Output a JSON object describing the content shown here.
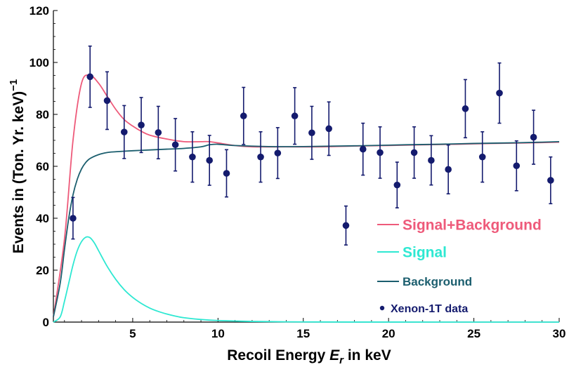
{
  "colors": {
    "signal_plus_background": "#ee5a7a",
    "signal": "#2ee8d2",
    "background": "#1b5e6e",
    "data": "#141b6e",
    "axis": "#000000"
  },
  "chart_data": {
    "type": "scatter",
    "title": "",
    "xlabel_prefix": "Recoil Energy ",
    "xlabel_var": "E",
    "xlabel_sub": "r",
    "xlabel_suffix": " in keV",
    "ylabel_main": "Events in (Ton. Yr. keV)",
    "ylabel_sup": "−1",
    "xlim": [
      0.35,
      30
    ],
    "ylim": [
      0,
      120
    ],
    "x_ticks": [
      5,
      10,
      15,
      20,
      25,
      30
    ],
    "x_tick_labels": [
      "5",
      "10",
      "15",
      "20",
      "25",
      "30"
    ],
    "y_ticks": [
      0,
      20,
      40,
      60,
      80,
      100,
      120
    ],
    "y_tick_labels": [
      "0",
      "20",
      "40",
      "60",
      "80",
      "100",
      "120"
    ],
    "legend_position": "right",
    "series": [
      {
        "name": "Signal+Background",
        "kind": "line",
        "x": [
          0.35,
          1.0,
          1.5,
          2.0,
          2.5,
          3.0,
          3.5,
          4.0,
          4.5,
          5.0,
          5.5,
          6.0,
          7.0,
          8.0,
          9.0,
          9.5,
          10.0,
          11.0,
          12.0,
          14.0,
          16.0,
          18.0,
          20.0,
          22.0,
          24.0,
          26.0,
          28.0,
          30.0
        ],
        "y": [
          2,
          32,
          70,
          92,
          95,
          92,
          87,
          82,
          78,
          75.5,
          73.5,
          72,
          70.5,
          69.5,
          69.5,
          69.5,
          69,
          68,
          67.5,
          67.5,
          67.5,
          67.8,
          68,
          68.3,
          68.5,
          68.8,
          69,
          69.3
        ]
      },
      {
        "name": "Signal",
        "kind": "line",
        "x": [
          0.35,
          0.75,
          1.0,
          1.25,
          1.5,
          1.75,
          2.0,
          2.25,
          2.5,
          2.75,
          3.0,
          3.5,
          4.0,
          4.5,
          5.0,
          5.5,
          6.0,
          6.5,
          7.0,
          7.5,
          8.0,
          9.0,
          10.0,
          12.0,
          14.0,
          16.0,
          18.0,
          20.0,
          30.0
        ],
        "y": [
          0,
          2,
          8,
          15,
          22,
          27.5,
          31,
          32.7,
          32.5,
          30.5,
          27.5,
          21.5,
          16.5,
          12.5,
          9.5,
          7.2,
          5.4,
          4.1,
          3.1,
          2.3,
          1.7,
          1.0,
          0.6,
          0.25,
          0.1,
          0.05,
          0.02,
          0.01,
          0
        ]
      },
      {
        "name": "Background",
        "kind": "line",
        "x": [
          0.35,
          0.75,
          1.0,
          1.25,
          1.5,
          1.75,
          2.0,
          2.25,
          2.5,
          3.0,
          3.5,
          4.0,
          5.0,
          6.0,
          7.0,
          8.0,
          9.0,
          9.5,
          10.0,
          11.0,
          13.0,
          15.0,
          17.0,
          19.0,
          21.0,
          23.0,
          25.0,
          27.0,
          29.0,
          30.0
        ],
        "y": [
          2,
          15,
          28,
          40,
          49,
          55,
          59,
          61.5,
          63,
          64.5,
          65.3,
          65.6,
          66,
          66.3,
          66.6,
          66.9,
          67.5,
          68.3,
          68.5,
          68,
          67.6,
          67.6,
          67.8,
          68,
          68.3,
          68.5,
          68.8,
          69,
          69.3,
          69.5
        ]
      },
      {
        "name": "Xenon-1T data",
        "kind": "points",
        "x": [
          1.5,
          2.5,
          3.5,
          4.5,
          5.5,
          6.5,
          7.5,
          8.5,
          9.5,
          10.5,
          11.5,
          12.5,
          13.5,
          14.5,
          15.5,
          16.5,
          17.5,
          18.5,
          19.5,
          20.5,
          21.5,
          22.5,
          23.5,
          24.5,
          25.5,
          26.5,
          27.5,
          28.5,
          29.5
        ],
        "y": [
          40,
          94.5,
          85.3,
          73.2,
          75.9,
          73,
          68.3,
          63.6,
          62.3,
          57.3,
          79.4,
          63.6,
          65.1,
          79.4,
          72.9,
          74.5,
          37.2,
          66.6,
          65.3,
          52.8,
          65.3,
          62.3,
          58.8,
          82.2,
          63.6,
          88.2,
          60.2,
          71.2,
          54.6
        ],
        "err": [
          8,
          11.8,
          11.1,
          10.2,
          10.6,
          10.1,
          10.1,
          9.7,
          9.6,
          9.1,
          11,
          9.7,
          9.8,
          10.9,
          10.2,
          10.3,
          7.5,
          10,
          9.9,
          8.8,
          9.9,
          9.5,
          9.4,
          11.2,
          9.7,
          11.6,
          9.6,
          10.4,
          9
        ]
      }
    ]
  }
}
